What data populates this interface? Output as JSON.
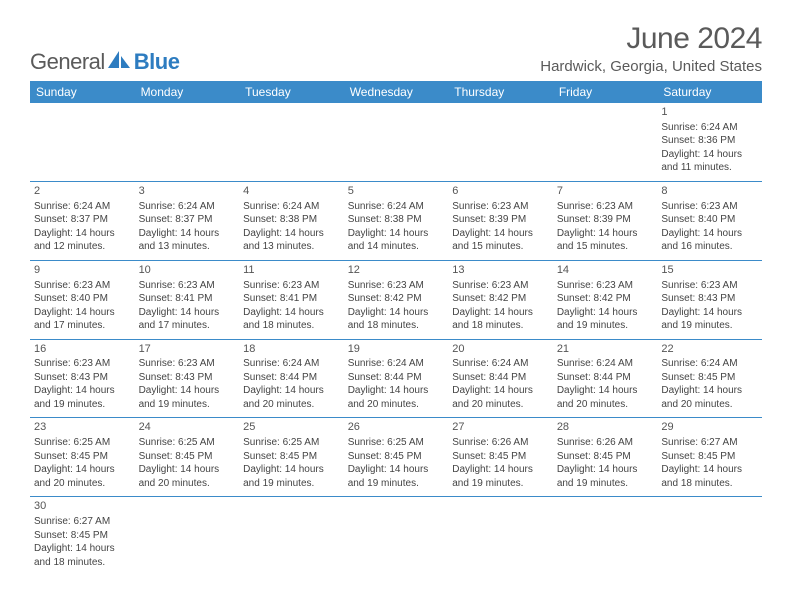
{
  "logo": {
    "general_text": "General",
    "blue_text": "Blue"
  },
  "title": "June 2024",
  "location": "Hardwick, Georgia, United States",
  "colors": {
    "header_bg": "#3b8bc9",
    "header_text": "#ffffff",
    "cell_border": "#3b8bc9",
    "body_text": "#444444",
    "title_text": "#5a5a5a",
    "logo_blue": "#2d7cc0"
  },
  "typography": {
    "title_fontsize": 30,
    "location_fontsize": 15,
    "header_fontsize": 12,
    "cell_fontsize": 10,
    "logo_fontsize": 22
  },
  "day_names": [
    "Sunday",
    "Monday",
    "Tuesday",
    "Wednesday",
    "Thursday",
    "Friday",
    "Saturday"
  ],
  "weeks": [
    [
      null,
      null,
      null,
      null,
      null,
      null,
      {
        "n": "1",
        "sr": "Sunrise: 6:24 AM",
        "ss": "Sunset: 8:36 PM",
        "d1": "Daylight: 14 hours",
        "d2": "and 11 minutes."
      }
    ],
    [
      {
        "n": "2",
        "sr": "Sunrise: 6:24 AM",
        "ss": "Sunset: 8:37 PM",
        "d1": "Daylight: 14 hours",
        "d2": "and 12 minutes."
      },
      {
        "n": "3",
        "sr": "Sunrise: 6:24 AM",
        "ss": "Sunset: 8:37 PM",
        "d1": "Daylight: 14 hours",
        "d2": "and 13 minutes."
      },
      {
        "n": "4",
        "sr": "Sunrise: 6:24 AM",
        "ss": "Sunset: 8:38 PM",
        "d1": "Daylight: 14 hours",
        "d2": "and 13 minutes."
      },
      {
        "n": "5",
        "sr": "Sunrise: 6:24 AM",
        "ss": "Sunset: 8:38 PM",
        "d1": "Daylight: 14 hours",
        "d2": "and 14 minutes."
      },
      {
        "n": "6",
        "sr": "Sunrise: 6:23 AM",
        "ss": "Sunset: 8:39 PM",
        "d1": "Daylight: 14 hours",
        "d2": "and 15 minutes."
      },
      {
        "n": "7",
        "sr": "Sunrise: 6:23 AM",
        "ss": "Sunset: 8:39 PM",
        "d1": "Daylight: 14 hours",
        "d2": "and 15 minutes."
      },
      {
        "n": "8",
        "sr": "Sunrise: 6:23 AM",
        "ss": "Sunset: 8:40 PM",
        "d1": "Daylight: 14 hours",
        "d2": "and 16 minutes."
      }
    ],
    [
      {
        "n": "9",
        "sr": "Sunrise: 6:23 AM",
        "ss": "Sunset: 8:40 PM",
        "d1": "Daylight: 14 hours",
        "d2": "and 17 minutes."
      },
      {
        "n": "10",
        "sr": "Sunrise: 6:23 AM",
        "ss": "Sunset: 8:41 PM",
        "d1": "Daylight: 14 hours",
        "d2": "and 17 minutes."
      },
      {
        "n": "11",
        "sr": "Sunrise: 6:23 AM",
        "ss": "Sunset: 8:41 PM",
        "d1": "Daylight: 14 hours",
        "d2": "and 18 minutes."
      },
      {
        "n": "12",
        "sr": "Sunrise: 6:23 AM",
        "ss": "Sunset: 8:42 PM",
        "d1": "Daylight: 14 hours",
        "d2": "and 18 minutes."
      },
      {
        "n": "13",
        "sr": "Sunrise: 6:23 AM",
        "ss": "Sunset: 8:42 PM",
        "d1": "Daylight: 14 hours",
        "d2": "and 18 minutes."
      },
      {
        "n": "14",
        "sr": "Sunrise: 6:23 AM",
        "ss": "Sunset: 8:42 PM",
        "d1": "Daylight: 14 hours",
        "d2": "and 19 minutes."
      },
      {
        "n": "15",
        "sr": "Sunrise: 6:23 AM",
        "ss": "Sunset: 8:43 PM",
        "d1": "Daylight: 14 hours",
        "d2": "and 19 minutes."
      }
    ],
    [
      {
        "n": "16",
        "sr": "Sunrise: 6:23 AM",
        "ss": "Sunset: 8:43 PM",
        "d1": "Daylight: 14 hours",
        "d2": "and 19 minutes."
      },
      {
        "n": "17",
        "sr": "Sunrise: 6:23 AM",
        "ss": "Sunset: 8:43 PM",
        "d1": "Daylight: 14 hours",
        "d2": "and 19 minutes."
      },
      {
        "n": "18",
        "sr": "Sunrise: 6:24 AM",
        "ss": "Sunset: 8:44 PM",
        "d1": "Daylight: 14 hours",
        "d2": "and 20 minutes."
      },
      {
        "n": "19",
        "sr": "Sunrise: 6:24 AM",
        "ss": "Sunset: 8:44 PM",
        "d1": "Daylight: 14 hours",
        "d2": "and 20 minutes."
      },
      {
        "n": "20",
        "sr": "Sunrise: 6:24 AM",
        "ss": "Sunset: 8:44 PM",
        "d1": "Daylight: 14 hours",
        "d2": "and 20 minutes."
      },
      {
        "n": "21",
        "sr": "Sunrise: 6:24 AM",
        "ss": "Sunset: 8:44 PM",
        "d1": "Daylight: 14 hours",
        "d2": "and 20 minutes."
      },
      {
        "n": "22",
        "sr": "Sunrise: 6:24 AM",
        "ss": "Sunset: 8:45 PM",
        "d1": "Daylight: 14 hours",
        "d2": "and 20 minutes."
      }
    ],
    [
      {
        "n": "23",
        "sr": "Sunrise: 6:25 AM",
        "ss": "Sunset: 8:45 PM",
        "d1": "Daylight: 14 hours",
        "d2": "and 20 minutes."
      },
      {
        "n": "24",
        "sr": "Sunrise: 6:25 AM",
        "ss": "Sunset: 8:45 PM",
        "d1": "Daylight: 14 hours",
        "d2": "and 20 minutes."
      },
      {
        "n": "25",
        "sr": "Sunrise: 6:25 AM",
        "ss": "Sunset: 8:45 PM",
        "d1": "Daylight: 14 hours",
        "d2": "and 19 minutes."
      },
      {
        "n": "26",
        "sr": "Sunrise: 6:25 AM",
        "ss": "Sunset: 8:45 PM",
        "d1": "Daylight: 14 hours",
        "d2": "and 19 minutes."
      },
      {
        "n": "27",
        "sr": "Sunrise: 6:26 AM",
        "ss": "Sunset: 8:45 PM",
        "d1": "Daylight: 14 hours",
        "d2": "and 19 minutes."
      },
      {
        "n": "28",
        "sr": "Sunrise: 6:26 AM",
        "ss": "Sunset: 8:45 PM",
        "d1": "Daylight: 14 hours",
        "d2": "and 19 minutes."
      },
      {
        "n": "29",
        "sr": "Sunrise: 6:27 AM",
        "ss": "Sunset: 8:45 PM",
        "d1": "Daylight: 14 hours",
        "d2": "and 18 minutes."
      }
    ],
    [
      {
        "n": "30",
        "sr": "Sunrise: 6:27 AM",
        "ss": "Sunset: 8:45 PM",
        "d1": "Daylight: 14 hours",
        "d2": "and 18 minutes."
      },
      null,
      null,
      null,
      null,
      null,
      null
    ]
  ]
}
